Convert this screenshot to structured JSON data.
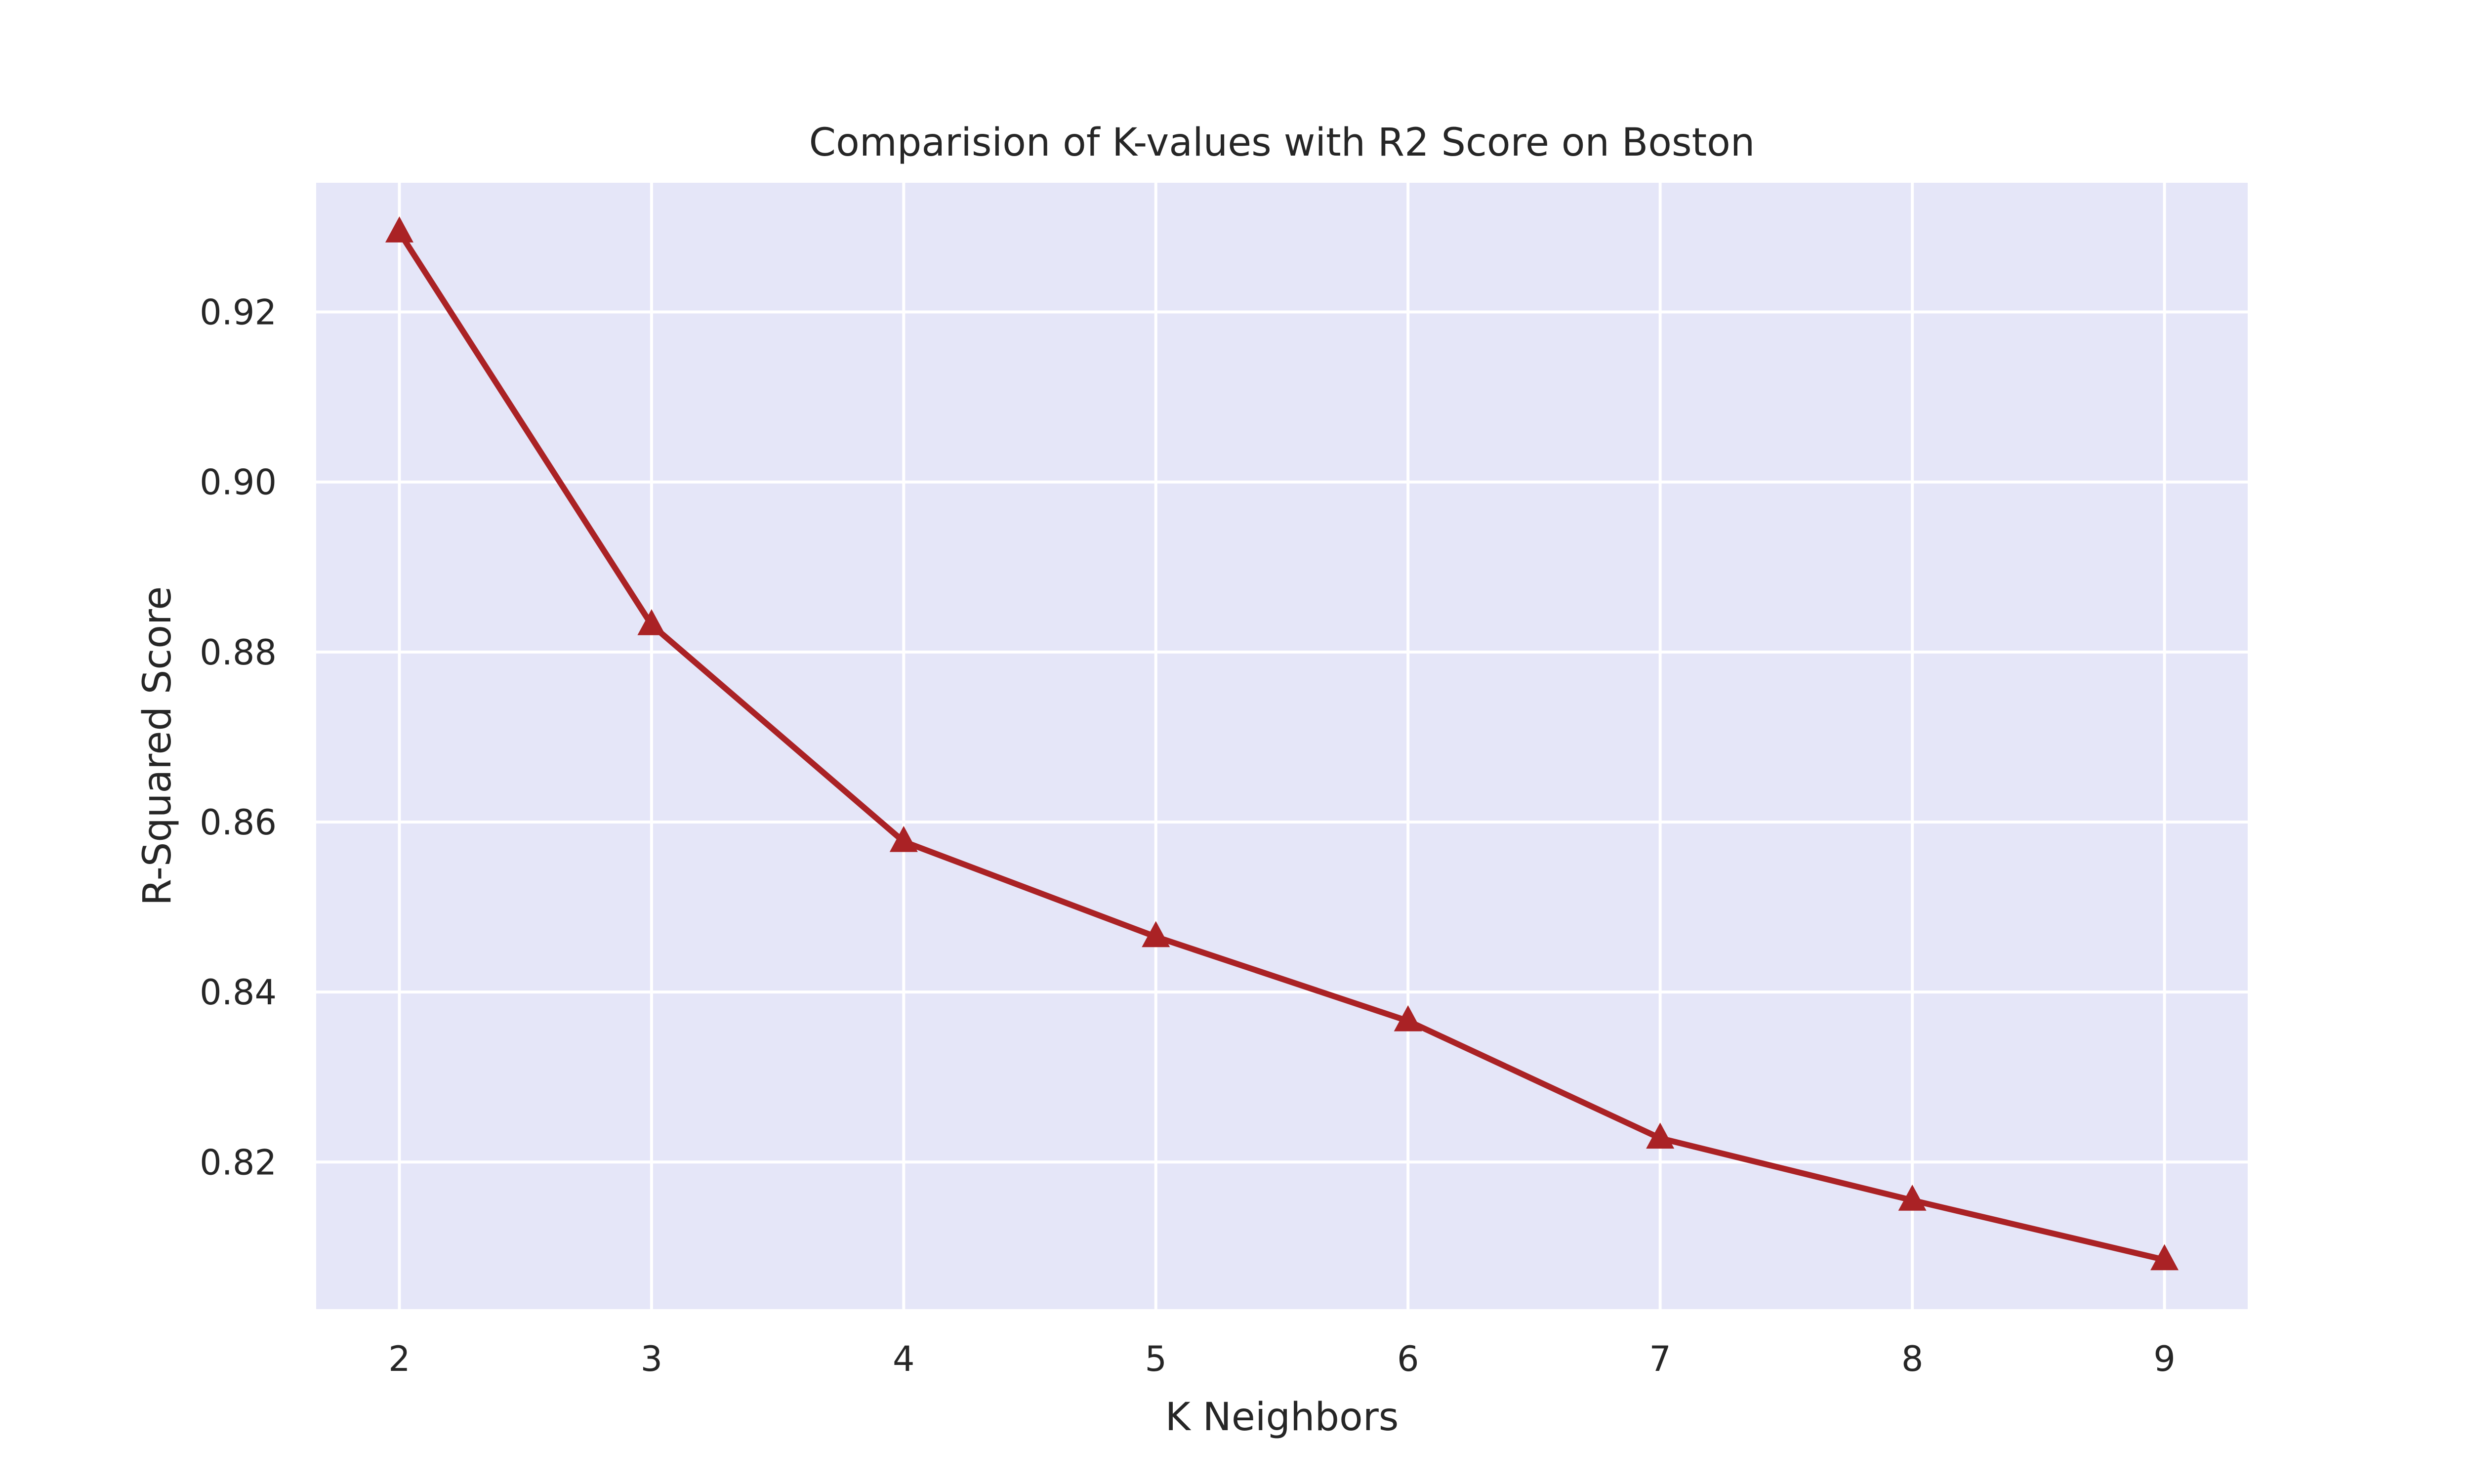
{
  "chart_data": {
    "type": "line",
    "title": "Comparision of K-values with R2 Score on Boston",
    "xlabel": "K Neighbors",
    "ylabel": "R-Squared Score",
    "x": [
      2,
      3,
      4,
      5,
      6,
      7,
      8,
      9
    ],
    "series": [
      {
        "values": [
          0.9294,
          0.8832,
          0.8577,
          0.8465,
          0.8366,
          0.8228,
          0.8155,
          0.8085
        ],
        "color": "#aa2225",
        "marker": "triangle-up"
      }
    ],
    "xticks": [
      "2",
      "3",
      "4",
      "5",
      "6",
      "7",
      "8",
      "9"
    ],
    "yticks": [
      {
        "value": 0.82,
        "label": "0.82"
      },
      {
        "value": 0.84,
        "label": "0.84"
      },
      {
        "value": 0.86,
        "label": "0.86"
      },
      {
        "value": 0.88,
        "label": "0.88"
      },
      {
        "value": 0.9,
        "label": "0.90"
      },
      {
        "value": 0.92,
        "label": "0.92"
      }
    ],
    "xlim": [
      1.67,
      9.33
    ],
    "ylim": [
      0.8027,
      0.9352
    ],
    "grid": true,
    "plot_background": "#e5e6f8",
    "grid_color": "#ffffff"
  }
}
